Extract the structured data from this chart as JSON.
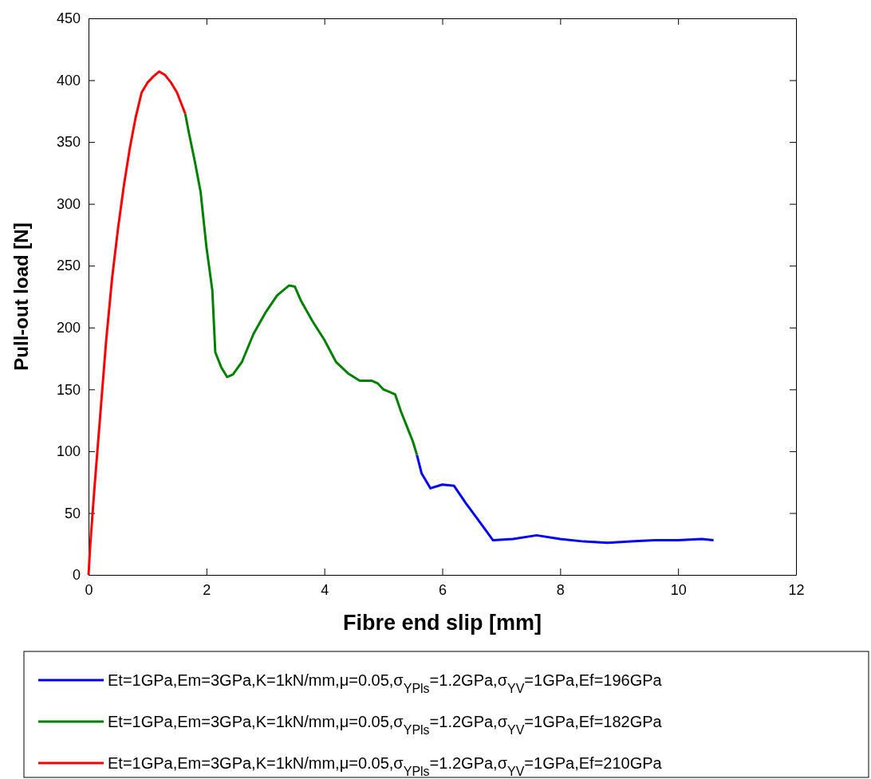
{
  "chart_data": {
    "type": "line",
    "xlabel": "Fibre end slip [mm]",
    "ylabel": "Pull-out load [N]",
    "xlim": [
      0,
      12
    ],
    "xticks": [
      0,
      2,
      4,
      6,
      8,
      10,
      12
    ],
    "ylim": [
      0,
      450
    ],
    "yticks": [
      0,
      50,
      100,
      150,
      200,
      250,
      300,
      350,
      400,
      450
    ],
    "grid": false,
    "legend": "bottom",
    "line_style": "solid",
    "marker": "none",
    "series": [
      {
        "name": "Et=1GPa,Em=3GPa,K=1kN/mm,μ=0.05,σ$_{YPls}$=1.2GPa,σ$_{YV}$=1GPa,Ef=196GPa",
        "color": "#0000ff",
        "x": [
          5.57,
          5.65,
          5.8,
          6.0,
          6.2,
          6.4,
          6.6,
          6.8,
          6.86,
          7.2,
          7.6,
          8.0,
          8.4,
          8.8,
          9.2,
          9.6,
          10.0,
          10.4,
          10.6
        ],
        "values": [
          97,
          82,
          70,
          73,
          72,
          58,
          45,
          32,
          28,
          29,
          32,
          29,
          27,
          26,
          27,
          28,
          28,
          29,
          28
        ]
      },
      {
        "name": "Et=1GPa,Em=3GPa,K=1kN/mm,μ=0.05,σ$_{YPls}$=1.2GPa,σ$_{YV}$=1GPa,Ef=182GPa",
        "color": "#008000",
        "x": [
          1.64,
          1.7,
          1.8,
          1.9,
          2.0,
          2.1,
          2.15,
          2.25,
          2.35,
          2.45,
          2.6,
          2.8,
          3.0,
          3.2,
          3.4,
          3.5,
          3.6,
          3.8,
          4.0,
          4.2,
          4.4,
          4.6,
          4.8,
          4.9,
          5.0,
          5.1,
          5.2,
          5.3,
          5.4,
          5.5,
          5.57
        ],
        "values": [
          373,
          358,
          335,
          310,
          265,
          230,
          180,
          168,
          160,
          162,
          172,
          195,
          212,
          226,
          234,
          233,
          222,
          205,
          190,
          172,
          163,
          157,
          157,
          155,
          150,
          148,
          146,
          132,
          120,
          108,
          97
        ]
      },
      {
        "name": "Et=1GPa,Em=3GPa,K=1kN/mm,μ=0.05,σ$_{YPls}$=1.2GPa,σ$_{YV}$=1GPa,Ef=210GPa",
        "color": "#ff0000",
        "x": [
          0,
          0.03,
          0.1,
          0.2,
          0.3,
          0.4,
          0.5,
          0.6,
          0.7,
          0.8,
          0.9,
          1.0,
          1.1,
          1.2,
          1.3,
          1.4,
          1.5,
          1.64
        ],
        "values": [
          0,
          25,
          70,
          130,
          190,
          240,
          280,
          315,
          345,
          370,
          390,
          398,
          403,
          407,
          404,
          398,
          390,
          373
        ]
      }
    ]
  }
}
